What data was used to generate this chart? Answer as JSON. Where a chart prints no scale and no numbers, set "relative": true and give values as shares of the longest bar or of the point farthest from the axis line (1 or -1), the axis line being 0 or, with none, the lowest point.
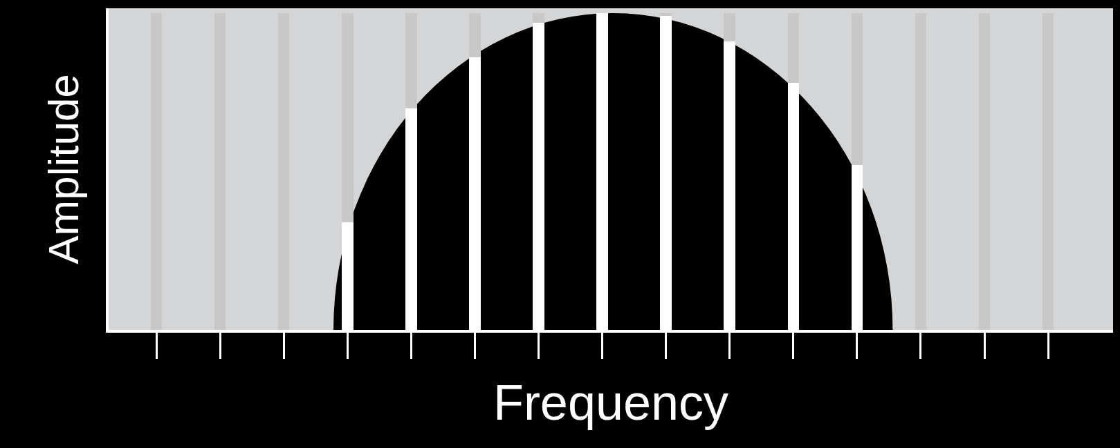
{
  "chart_data": {
    "type": "bar",
    "relative": true,
    "stacked": true,
    "xlabel": "Frequency",
    "ylabel": "Amplitude",
    "categories": [
      null,
      null,
      null,
      null,
      null,
      null,
      null,
      null,
      null,
      null,
      null,
      null,
      null,
      null,
      null
    ],
    "tick_labels": false,
    "series": [
      {
        "color": "#ffffff",
        "values": [
          0,
          0,
          0,
          0.34,
          0.7,
          0.86,
          0.97,
          1,
          0.99,
          0.91,
          0.78,
          0.52,
          0,
          0,
          0
        ]
      },
      {
        "color": "#c8c8c8",
        "values": [
          1,
          1,
          1,
          0.66,
          0.3,
          0.14,
          0.03,
          0,
          0.01,
          0.09,
          0.22,
          0.48,
          1,
          1,
          1
        ]
      }
    ]
  }
}
